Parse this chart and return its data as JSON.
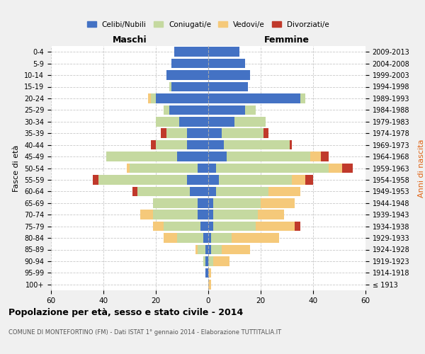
{
  "age_groups": [
    "100+",
    "95-99",
    "90-94",
    "85-89",
    "80-84",
    "75-79",
    "70-74",
    "65-69",
    "60-64",
    "55-59",
    "50-54",
    "45-49",
    "40-44",
    "35-39",
    "30-34",
    "25-29",
    "20-24",
    "15-19",
    "10-14",
    "5-9",
    "0-4"
  ],
  "birth_years": [
    "≤ 1913",
    "1914-1918",
    "1919-1923",
    "1924-1928",
    "1929-1933",
    "1934-1938",
    "1939-1943",
    "1944-1948",
    "1949-1953",
    "1954-1958",
    "1959-1963",
    "1964-1968",
    "1969-1973",
    "1974-1978",
    "1979-1983",
    "1984-1988",
    "1989-1993",
    "1994-1998",
    "1999-2003",
    "2004-2008",
    "2009-2013"
  ],
  "colors": {
    "celibe": "#4472C4",
    "coniugato": "#c5d9a0",
    "vedovo": "#f5c97a",
    "divorziato": "#c0392b"
  },
  "maschi": {
    "celibe": [
      0,
      1,
      1,
      1,
      2,
      3,
      4,
      4,
      7,
      8,
      4,
      12,
      8,
      8,
      11,
      15,
      20,
      14,
      16,
      14,
      13
    ],
    "coniugato": [
      0,
      0,
      1,
      3,
      10,
      14,
      17,
      17,
      20,
      34,
      26,
      27,
      12,
      8,
      9,
      2,
      2,
      1,
      0,
      0,
      0
    ],
    "vedovo": [
      0,
      0,
      0,
      1,
      5,
      4,
      5,
      0,
      0,
      0,
      1,
      0,
      0,
      0,
      0,
      0,
      1,
      0,
      0,
      0,
      0
    ],
    "divorziato": [
      0,
      0,
      0,
      0,
      0,
      0,
      0,
      0,
      2,
      2,
      0,
      0,
      2,
      2,
      0,
      0,
      0,
      0,
      0,
      0,
      0
    ]
  },
  "femmine": {
    "nubile": [
      0,
      0,
      0,
      1,
      1,
      2,
      2,
      2,
      3,
      4,
      3,
      7,
      6,
      5,
      10,
      14,
      35,
      15,
      16,
      14,
      12
    ],
    "coniugata": [
      0,
      0,
      2,
      4,
      8,
      16,
      17,
      18,
      20,
      28,
      43,
      32,
      25,
      16,
      12,
      4,
      2,
      0,
      0,
      0,
      0
    ],
    "vedova": [
      1,
      1,
      6,
      11,
      18,
      15,
      10,
      13,
      12,
      5,
      5,
      4,
      0,
      0,
      0,
      0,
      0,
      0,
      0,
      0,
      0
    ],
    "divorziata": [
      0,
      0,
      0,
      0,
      0,
      2,
      0,
      0,
      0,
      3,
      4,
      3,
      1,
      2,
      0,
      0,
      0,
      0,
      0,
      0,
      0
    ]
  },
  "xlim": 60,
  "title": "Popolazione per età, sesso e stato civile - 2014",
  "subtitle": "COMUNE DI MONTEFORTINO (FM) - Dati ISTAT 1° gennaio 2014 - Elaborazione TUTTITALIA.IT",
  "ylabel_left": "Fasce di età",
  "ylabel_right": "Anni di nascita",
  "xlabel_left": "Maschi",
  "xlabel_right": "Femmine",
  "bg_color": "#f0f0f0",
  "plot_bg_color": "#ffffff"
}
